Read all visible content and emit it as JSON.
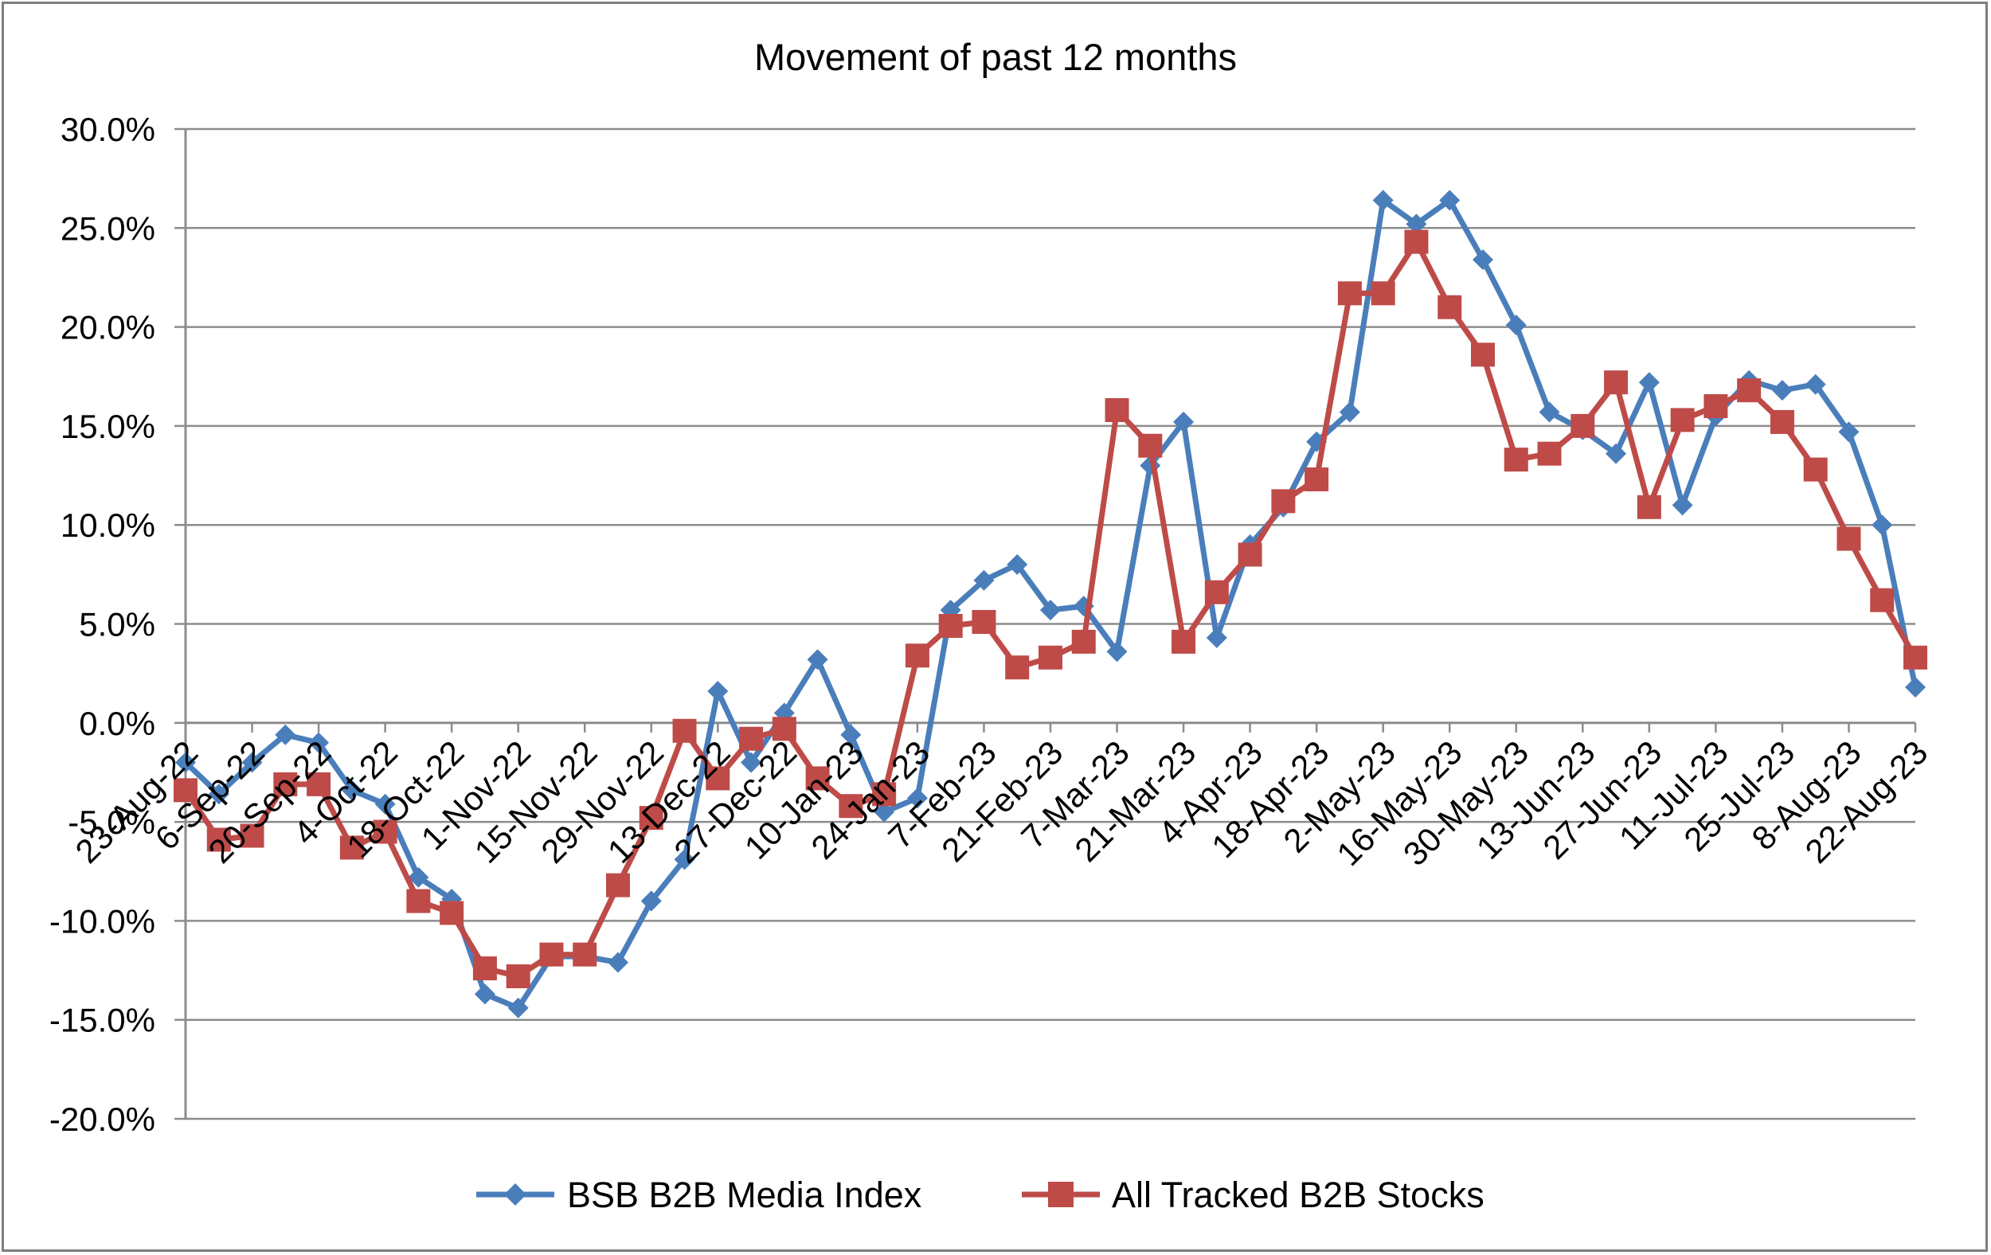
{
  "chart_data": {
    "type": "line",
    "title": "Movement of past 12 months",
    "xlabel": "",
    "ylabel": "",
    "ylim": [
      -20,
      30
    ],
    "y_ticks": [
      30,
      25,
      20,
      15,
      10,
      5,
      0,
      -5,
      -10,
      -15,
      -20
    ],
    "y_tick_labels": [
      "30.0%",
      "25.0%",
      "20.0%",
      "15.0%",
      "10.0%",
      "5.0%",
      "0.0%",
      "-5.0%",
      "-10.0%",
      "-15.0%",
      "-20.0%"
    ],
    "grid": true,
    "legend_position": "bottom",
    "x_tick_labels": [
      "23-Aug-22",
      "6-Sep-22",
      "20-Sep-22",
      "4-Oct-22",
      "18-Oct-22",
      "1-Nov-22",
      "15-Nov-22",
      "29-Nov-22",
      "13-Dec-22",
      "27-Dec-22",
      "10-Jan-23",
      "24-Jan-23",
      "7-Feb-23",
      "21-Feb-23",
      "7-Mar-23",
      "21-Mar-23",
      "4-Apr-23",
      "18-Apr-23",
      "2-May-23",
      "16-May-23",
      "30-May-23",
      "13-Jun-23",
      "27-Jun-23",
      "11-Jul-23",
      "25-Jul-23",
      "8-Aug-23",
      "22-Aug-23"
    ],
    "x": [
      "23-Aug-22",
      "30-Aug-22",
      "6-Sep-22",
      "13-Sep-22",
      "20-Sep-22",
      "27-Sep-22",
      "4-Oct-22",
      "11-Oct-22",
      "18-Oct-22",
      "25-Oct-22",
      "1-Nov-22",
      "8-Nov-22",
      "15-Nov-22",
      "22-Nov-22",
      "29-Nov-22",
      "6-Dec-22",
      "13-Dec-22",
      "20-Dec-22",
      "27-Dec-22",
      "3-Jan-23",
      "10-Jan-23",
      "17-Jan-23",
      "24-Jan-23",
      "31-Jan-23",
      "7-Feb-23",
      "14-Feb-23",
      "21-Feb-23",
      "28-Feb-23",
      "7-Mar-23",
      "14-Mar-23",
      "21-Mar-23",
      "28-Mar-23",
      "4-Apr-23",
      "11-Apr-23",
      "18-Apr-23",
      "25-Apr-23",
      "2-May-23",
      "9-May-23",
      "16-May-23",
      "23-May-23",
      "30-May-23",
      "6-Jun-23",
      "13-Jun-23",
      "20-Jun-23",
      "27-Jun-23",
      "4-Jul-23",
      "11-Jul-23",
      "18-Jul-23",
      "25-Jul-23",
      "1-Aug-23",
      "8-Aug-23",
      "15-Aug-23",
      "22-Aug-23"
    ],
    "series": [
      {
        "name": "BSB B2B Media Index",
        "color": "#4a7ebb",
        "marker": "diamond",
        "values": [
          -2.0,
          -3.6,
          -2.0,
          -0.6,
          -1.0,
          -3.4,
          -4.1,
          -7.8,
          -8.9,
          -13.7,
          -14.4,
          -11.8,
          -11.8,
          -12.1,
          -9.0,
          -6.9,
          1.6,
          -2.0,
          0.5,
          3.2,
          -0.6,
          -4.5,
          -3.8,
          5.7,
          7.2,
          8.0,
          5.7,
          5.9,
          3.6,
          13.0,
          15.2,
          4.3,
          9.0,
          10.9,
          14.2,
          15.7,
          26.4,
          25.2,
          26.4,
          23.4,
          20.1,
          15.7,
          14.8,
          13.6,
          17.2,
          11.0,
          15.5,
          17.3,
          16.8,
          17.1,
          14.7,
          10.0,
          1.8
        ]
      },
      {
        "name": "All Tracked B2B Stocks",
        "color": "#be4b48",
        "marker": "square",
        "values": [
          -3.4,
          -5.9,
          -5.7,
          -3.1,
          -3.1,
          -6.3,
          -5.5,
          -9.0,
          -9.6,
          -12.4,
          -12.8,
          -11.7,
          -11.7,
          -8.2,
          -4.8,
          -0.4,
          -2.8,
          -0.8,
          -0.3,
          -2.8,
          -4.2,
          -3.6,
          3.4,
          4.9,
          5.1,
          2.8,
          3.3,
          4.1,
          15.8,
          14.0,
          4.1,
          6.6,
          8.5,
          11.2,
          12.3,
          21.7,
          21.7,
          24.3,
          21.0,
          18.6,
          13.3,
          13.6,
          15.0,
          17.2,
          10.9,
          15.3,
          16.0,
          16.8,
          15.2,
          12.8,
          9.3,
          6.2,
          3.3
        ]
      }
    ]
  }
}
